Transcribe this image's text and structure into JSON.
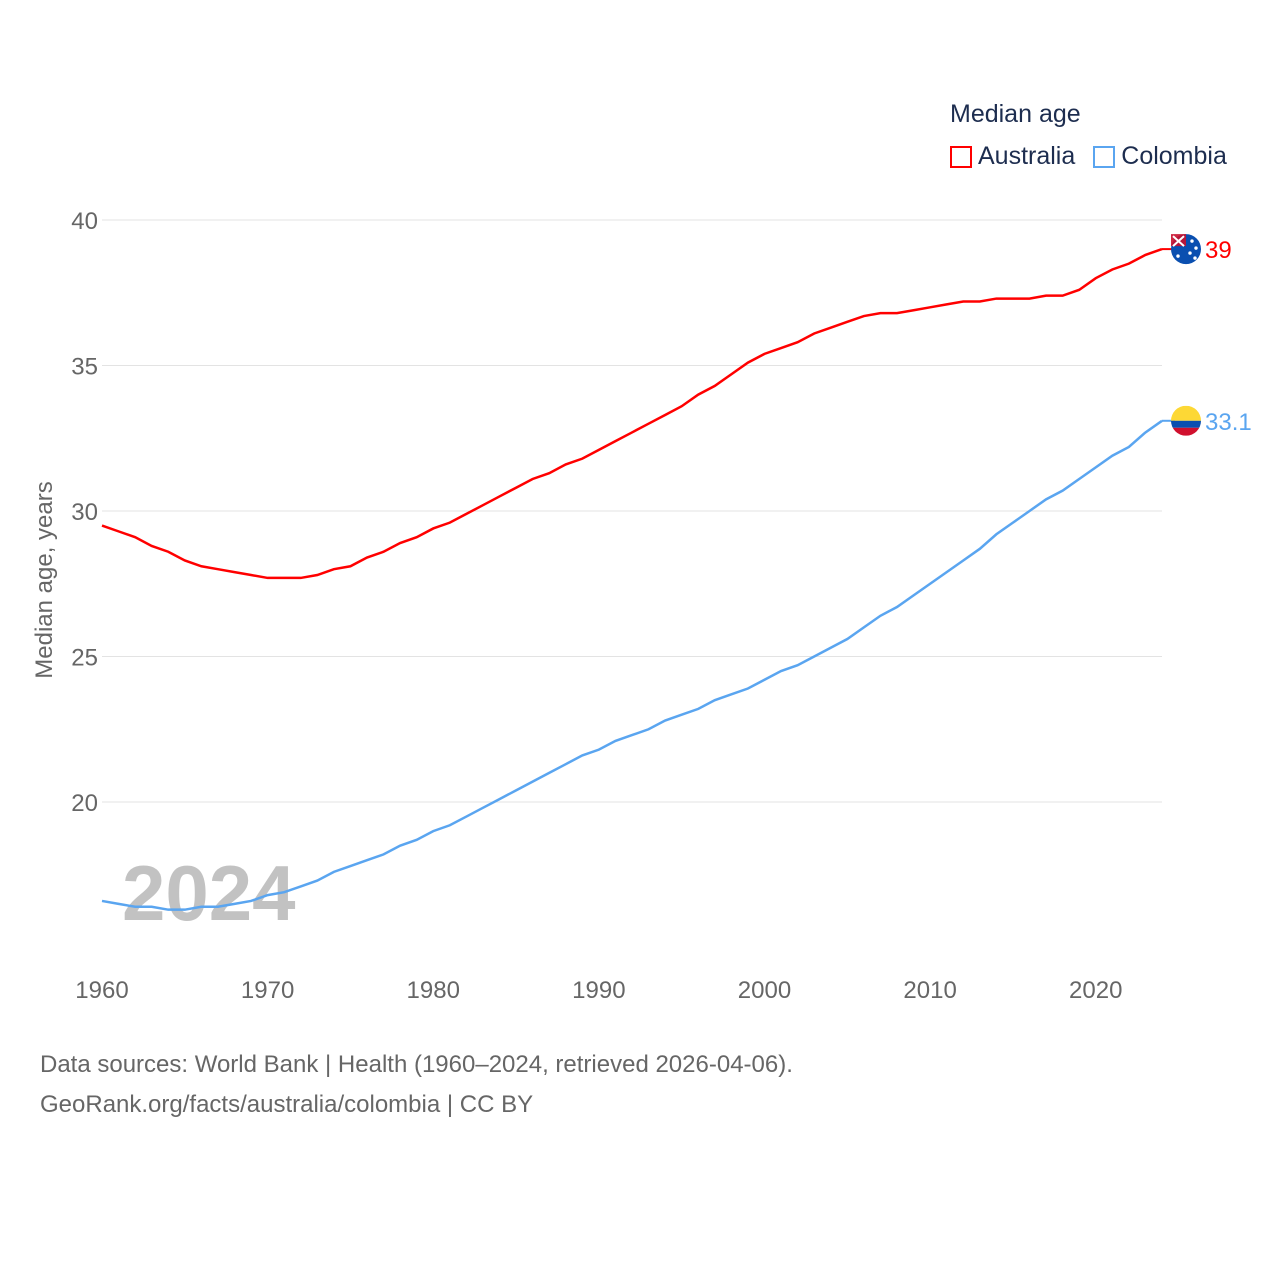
{
  "chart_data": {
    "type": "line",
    "title": "Median age",
    "ylabel": "Median age, years",
    "xlabel": "",
    "ylim": [
      14.5,
      40
    ],
    "xlim": [
      1960,
      2024
    ],
    "yticks": [
      20,
      25,
      30,
      35,
      40
    ],
    "xticks": [
      1960,
      1970,
      1980,
      1990,
      2000,
      2010,
      2020
    ],
    "grid": true,
    "legend_position": "top-right",
    "year_watermark": "2024",
    "x": [
      1960,
      1961,
      1962,
      1963,
      1964,
      1965,
      1966,
      1967,
      1968,
      1969,
      1970,
      1971,
      1972,
      1973,
      1974,
      1975,
      1976,
      1977,
      1978,
      1979,
      1980,
      1981,
      1982,
      1983,
      1984,
      1985,
      1986,
      1987,
      1988,
      1989,
      1990,
      1991,
      1992,
      1993,
      1994,
      1995,
      1996,
      1997,
      1998,
      1999,
      2000,
      2001,
      2002,
      2003,
      2004,
      2005,
      2006,
      2007,
      2008,
      2009,
      2010,
      2011,
      2012,
      2013,
      2014,
      2015,
      2016,
      2017,
      2018,
      2019,
      2020,
      2021,
      2022,
      2023,
      2024
    ],
    "series": [
      {
        "name": "Australia",
        "color": "#ff0000",
        "end_label": "39",
        "flag": "australia-flag",
        "values": [
          29.5,
          29.3,
          29.1,
          28.8,
          28.6,
          28.3,
          28.1,
          28.0,
          27.9,
          27.8,
          27.7,
          27.7,
          27.7,
          27.8,
          28.0,
          28.1,
          28.4,
          28.6,
          28.9,
          29.1,
          29.4,
          29.6,
          29.9,
          30.2,
          30.5,
          30.8,
          31.1,
          31.3,
          31.6,
          31.8,
          32.1,
          32.4,
          32.7,
          33.0,
          33.3,
          33.6,
          34.0,
          34.3,
          34.7,
          35.1,
          35.4,
          35.6,
          35.8,
          36.1,
          36.3,
          36.5,
          36.7,
          36.8,
          36.8,
          36.9,
          37.0,
          37.1,
          37.2,
          37.2,
          37.3,
          37.3,
          37.3,
          37.4,
          37.4,
          37.6,
          38.0,
          38.3,
          38.5,
          38.8,
          39.0
        ]
      },
      {
        "name": "Colombia",
        "color": "#5aa5f0",
        "end_label": "33.1",
        "flag": "colombia-flag",
        "values": [
          16.6,
          16.5,
          16.4,
          16.4,
          16.3,
          16.3,
          16.4,
          16.4,
          16.5,
          16.6,
          16.8,
          16.9,
          17.1,
          17.3,
          17.6,
          17.8,
          18.0,
          18.2,
          18.5,
          18.7,
          19.0,
          19.2,
          19.5,
          19.8,
          20.1,
          20.4,
          20.7,
          21.0,
          21.3,
          21.6,
          21.8,
          22.1,
          22.3,
          22.5,
          22.8,
          23.0,
          23.2,
          23.5,
          23.7,
          23.9,
          24.2,
          24.5,
          24.7,
          25.0,
          25.3,
          25.6,
          26.0,
          26.4,
          26.7,
          27.1,
          27.5,
          27.9,
          28.3,
          28.7,
          29.2,
          29.6,
          30.0,
          30.4,
          30.7,
          31.1,
          31.5,
          31.9,
          32.2,
          32.7,
          33.1
        ]
      }
    ]
  },
  "source": {
    "line1": "Data sources: World Bank | Health (1960–2024, retrieved 2026-04-06).",
    "line2": "GeoRank.org/facts/australia/colombia | CC BY"
  }
}
